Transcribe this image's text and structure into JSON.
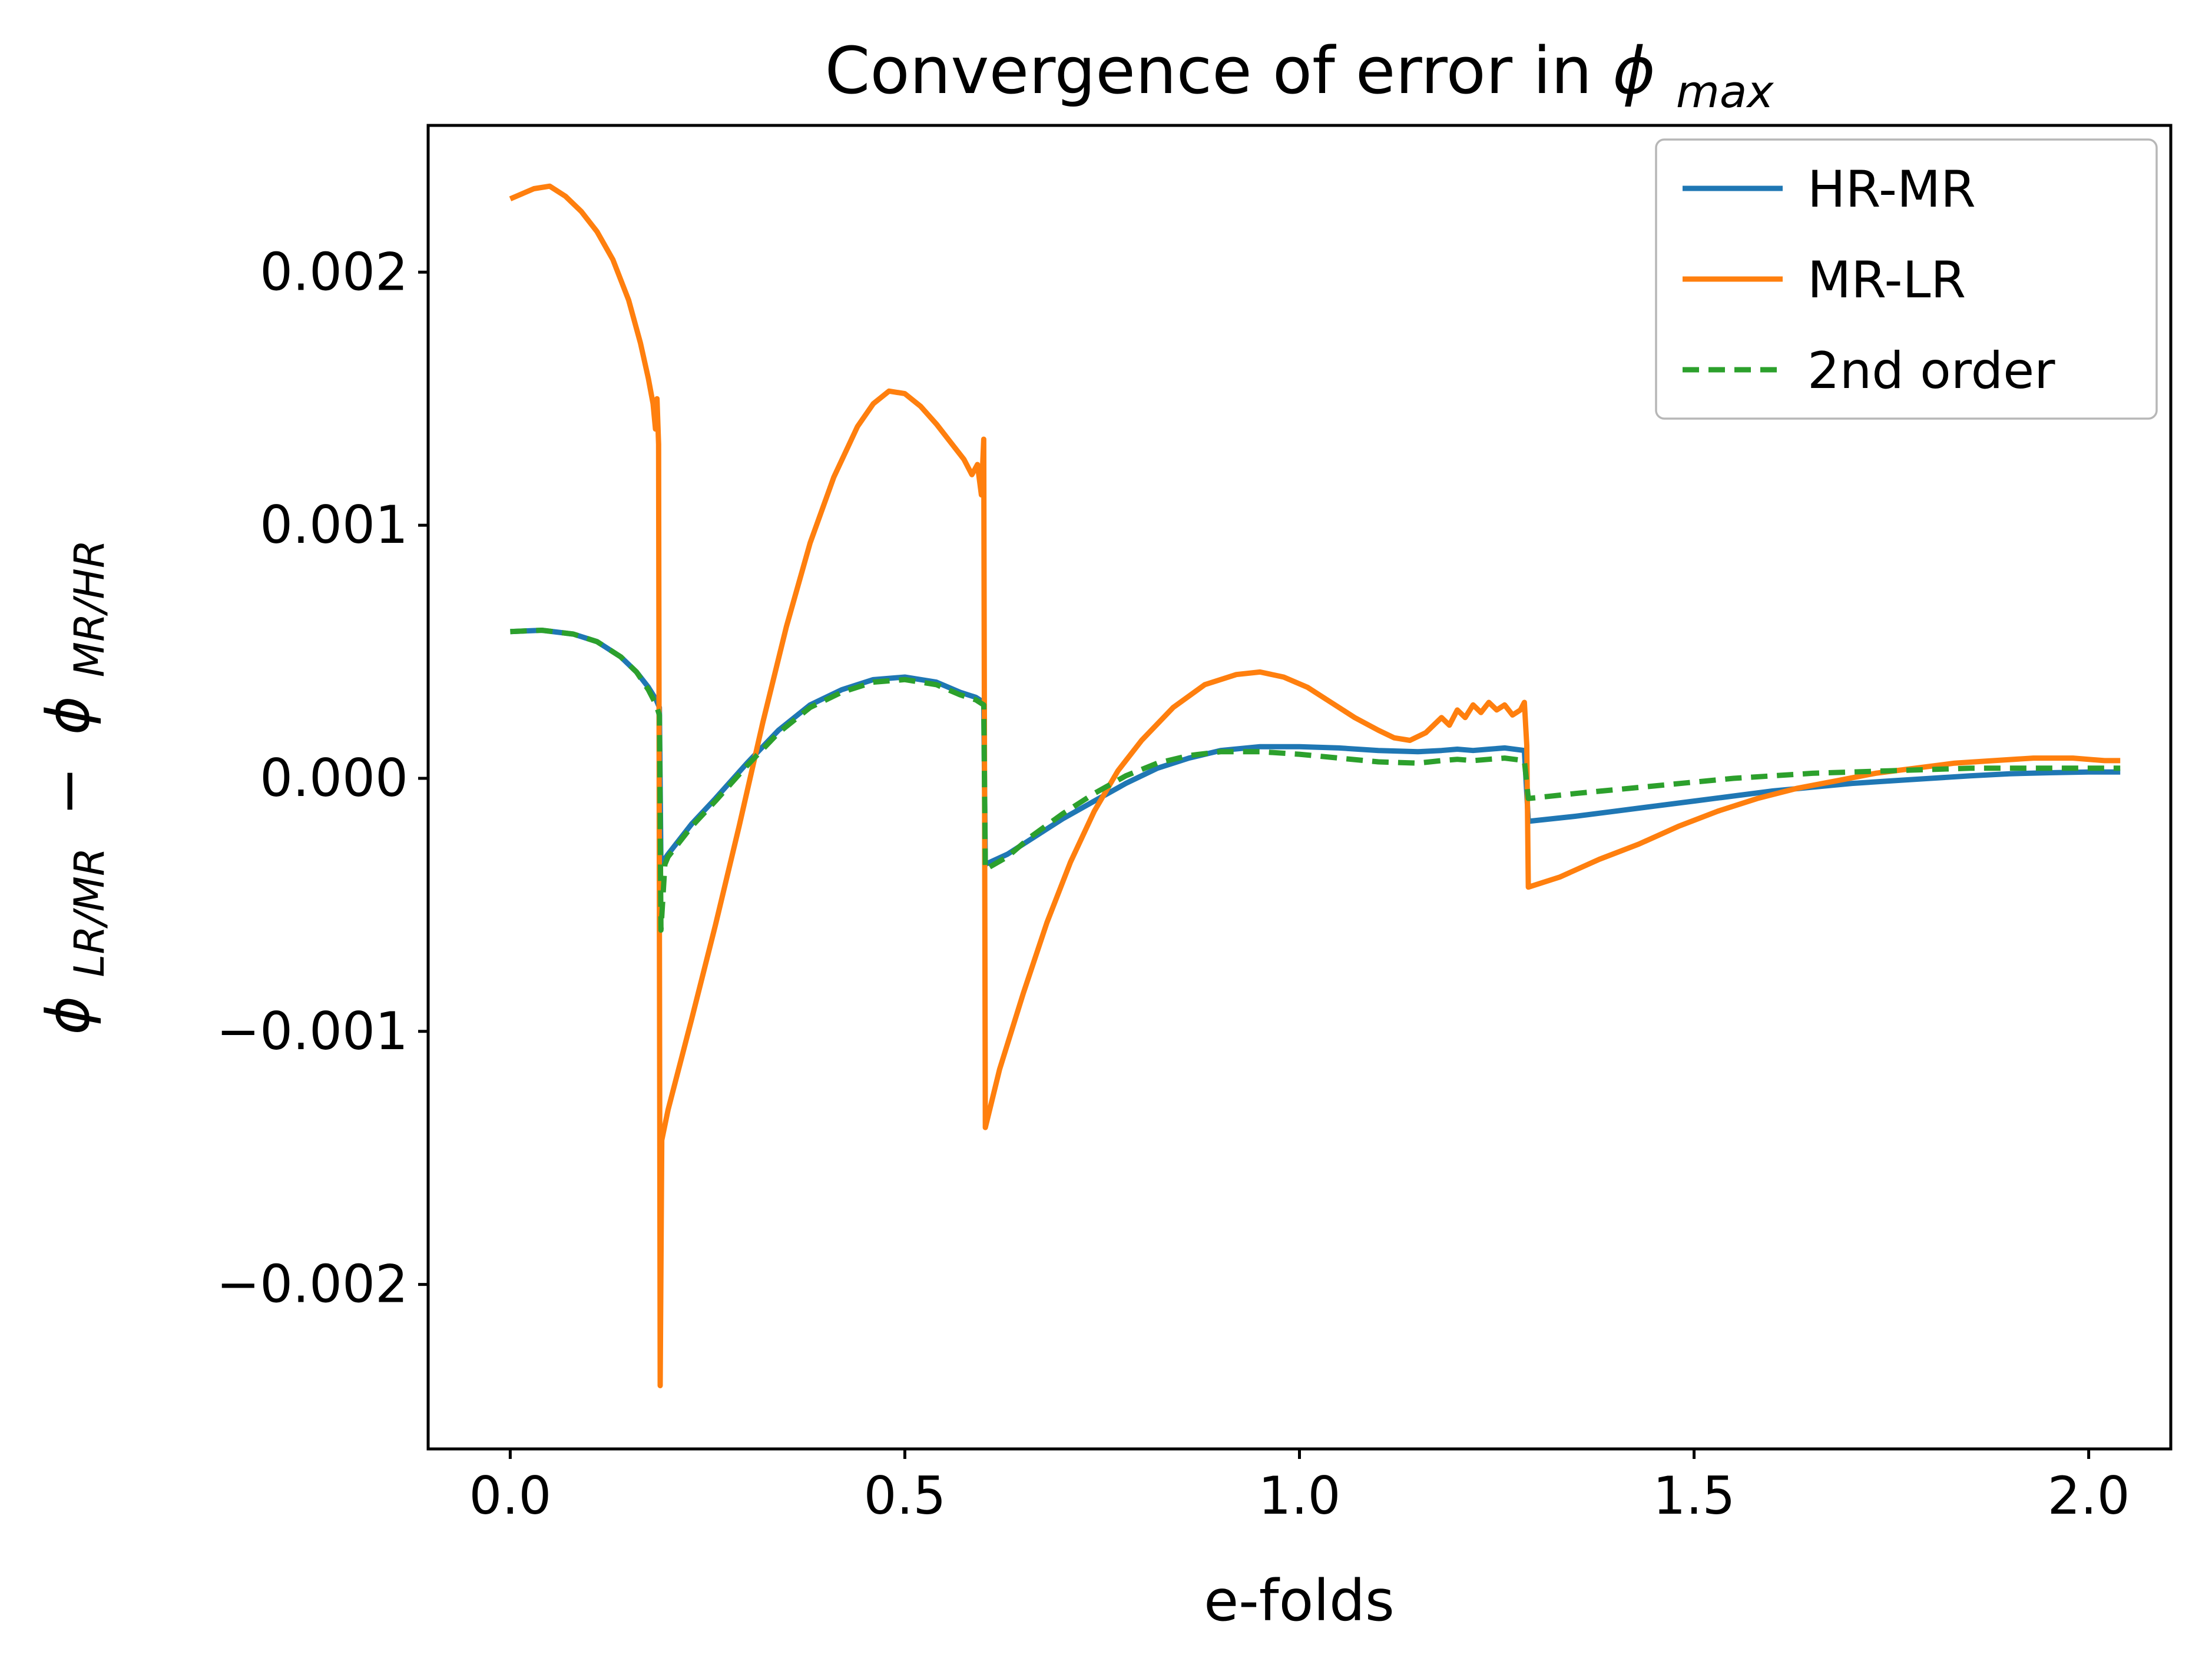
{
  "figure": {
    "background": "#ffffff"
  },
  "chart_data": {
    "type": "line",
    "title": {
      "prefix": "Convergence of error in ",
      "symbol": "ϕ",
      "subscript": "max"
    },
    "xlabel": "e-folds",
    "ylabel": {
      "symbol1": "ϕ",
      "subscript1": "LR/MR",
      "operator": "−",
      "symbol2": "ϕ",
      "subscript2": "MR/HR"
    },
    "xlim": [
      -0.104,
      2.104
    ],
    "ylim": [
      -0.00265,
      0.00258
    ],
    "grid": false,
    "xticks": [
      {
        "v": 0.0,
        "label": "0.0"
      },
      {
        "v": 0.5,
        "label": "0.5"
      },
      {
        "v": 1.0,
        "label": "1.0"
      },
      {
        "v": 1.5,
        "label": "1.5"
      },
      {
        "v": 2.0,
        "label": "2.0"
      }
    ],
    "yticks": [
      {
        "v": -0.002,
        "label": "−0.002"
      },
      {
        "v": -0.001,
        "label": "−0.001"
      },
      {
        "v": 0.0,
        "label": "0.000"
      },
      {
        "v": 0.001,
        "label": "0.001"
      },
      {
        "v": 0.002,
        "label": "0.002"
      }
    ],
    "legend": {
      "position": "upper right",
      "entries": [
        {
          "label": "HR-MR",
          "color": "#1f77b4",
          "dash": false
        },
        {
          "label": "MR-LR",
          "color": "#ff7f0e",
          "dash": false
        },
        {
          "label": "2nd order",
          "color": "#2ca02c",
          "dash": true
        }
      ]
    },
    "series": [
      {
        "name": "HR-MR",
        "color": "#1f77b4",
        "dash": null,
        "points": [
          [
            0.0,
            0.00058
          ],
          [
            0.04,
            0.000585
          ],
          [
            0.08,
            0.00057
          ],
          [
            0.11,
            0.00054
          ],
          [
            0.14,
            0.00048
          ],
          [
            0.16,
            0.00042
          ],
          [
            0.175,
            0.00036
          ],
          [
            0.185,
            0.00031
          ],
          [
            0.189,
            0.00028
          ],
          [
            0.191,
            -0.00034
          ],
          [
            0.2,
            -0.0003
          ],
          [
            0.23,
            -0.00018
          ],
          [
            0.26,
            -8e-05
          ],
          [
            0.3,
            6e-05
          ],
          [
            0.34,
            0.00019
          ],
          [
            0.38,
            0.00029
          ],
          [
            0.42,
            0.00035
          ],
          [
            0.46,
            0.00039
          ],
          [
            0.5,
            0.0004
          ],
          [
            0.54,
            0.00038
          ],
          [
            0.57,
            0.00034
          ],
          [
            0.59,
            0.00032
          ],
          [
            0.6,
            0.0003
          ],
          [
            0.602,
            -0.00034
          ],
          [
            0.63,
            -0.0003
          ],
          [
            0.66,
            -0.00024
          ],
          [
            0.7,
            -0.00016
          ],
          [
            0.74,
            -9e-05
          ],
          [
            0.78,
            -2e-05
          ],
          [
            0.82,
            4e-05
          ],
          [
            0.86,
            8e-05
          ],
          [
            0.9,
            0.00011
          ],
          [
            0.95,
            0.000125
          ],
          [
            1.0,
            0.000125
          ],
          [
            1.05,
            0.00012
          ],
          [
            1.1,
            0.00011
          ],
          [
            1.15,
            0.000105
          ],
          [
            1.18,
            0.00011
          ],
          [
            1.2,
            0.000115
          ],
          [
            1.22,
            0.00011
          ],
          [
            1.24,
            0.000115
          ],
          [
            1.26,
            0.00012
          ],
          [
            1.285,
            0.00011
          ],
          [
            1.29,
            -0.00017
          ],
          [
            1.35,
            -0.00015
          ],
          [
            1.4,
            -0.00013
          ],
          [
            1.45,
            -0.00011
          ],
          [
            1.5,
            -9e-05
          ],
          [
            1.55,
            -7e-05
          ],
          [
            1.6,
            -5e-05
          ],
          [
            1.65,
            -3.5e-05
          ],
          [
            1.7,
            -2e-05
          ],
          [
            1.75,
            -1e-05
          ],
          [
            1.8,
            0.0
          ],
          [
            1.85,
            1e-05
          ],
          [
            1.9,
            1.8e-05
          ],
          [
            1.95,
            2.2e-05
          ],
          [
            2.0,
            2.5e-05
          ],
          [
            2.04,
            2.5e-05
          ]
        ]
      },
      {
        "name": "MR-LR",
        "color": "#ff7f0e",
        "dash": null,
        "points": [
          [
            0.0,
            0.00229
          ],
          [
            0.03,
            0.00233
          ],
          [
            0.05,
            0.00234
          ],
          [
            0.07,
            0.0023
          ],
          [
            0.09,
            0.00224
          ],
          [
            0.11,
            0.00216
          ],
          [
            0.13,
            0.00205
          ],
          [
            0.15,
            0.00189
          ],
          [
            0.165,
            0.00172
          ],
          [
            0.175,
            0.00158
          ],
          [
            0.181,
            0.00148
          ],
          [
            0.184,
            0.00138
          ],
          [
            0.186,
            0.0015
          ],
          [
            0.188,
            0.00132
          ],
          [
            0.19,
            -0.0024
          ],
          [
            0.192,
            -0.00143
          ],
          [
            0.2,
            -0.00131
          ],
          [
            0.23,
            -0.00095
          ],
          [
            0.26,
            -0.00058
          ],
          [
            0.29,
            -0.00019
          ],
          [
            0.32,
            0.00022
          ],
          [
            0.35,
            0.0006
          ],
          [
            0.38,
            0.00093
          ],
          [
            0.41,
            0.00119
          ],
          [
            0.44,
            0.00139
          ],
          [
            0.46,
            0.00148
          ],
          [
            0.48,
            0.00153
          ],
          [
            0.5,
            0.00152
          ],
          [
            0.52,
            0.00147
          ],
          [
            0.54,
            0.0014
          ],
          [
            0.56,
            0.00132
          ],
          [
            0.575,
            0.00126
          ],
          [
            0.585,
            0.0012
          ],
          [
            0.592,
            0.00124
          ],
          [
            0.597,
            0.00112
          ],
          [
            0.6,
            0.00134
          ],
          [
            0.602,
            -0.00138
          ],
          [
            0.62,
            -0.00115
          ],
          [
            0.65,
            -0.00085
          ],
          [
            0.68,
            -0.00057
          ],
          [
            0.71,
            -0.00033
          ],
          [
            0.74,
            -0.00013
          ],
          [
            0.77,
            3e-05
          ],
          [
            0.8,
            0.00015
          ],
          [
            0.84,
            0.00028
          ],
          [
            0.88,
            0.00037
          ],
          [
            0.92,
            0.00041
          ],
          [
            0.95,
            0.00042
          ],
          [
            0.98,
            0.0004
          ],
          [
            1.01,
            0.00036
          ],
          [
            1.04,
            0.0003
          ],
          [
            1.07,
            0.00024
          ],
          [
            1.1,
            0.00019
          ],
          [
            1.12,
            0.00016
          ],
          [
            1.14,
            0.00015
          ],
          [
            1.16,
            0.00018
          ],
          [
            1.18,
            0.00024
          ],
          [
            1.19,
            0.00021
          ],
          [
            1.2,
            0.00027
          ],
          [
            1.21,
            0.00024
          ],
          [
            1.22,
            0.00029
          ],
          [
            1.23,
            0.00026
          ],
          [
            1.24,
            0.0003
          ],
          [
            1.25,
            0.00027
          ],
          [
            1.26,
            0.00029
          ],
          [
            1.27,
            0.00025
          ],
          [
            1.28,
            0.00027
          ],
          [
            1.285,
            0.0003
          ],
          [
            1.288,
            0.00013
          ],
          [
            1.29,
            -0.00043
          ],
          [
            1.33,
            -0.00039
          ],
          [
            1.38,
            -0.00032
          ],
          [
            1.43,
            -0.00026
          ],
          [
            1.48,
            -0.00019
          ],
          [
            1.53,
            -0.00013
          ],
          [
            1.58,
            -8e-05
          ],
          [
            1.63,
            -4e-05
          ],
          [
            1.68,
            -1e-05
          ],
          [
            1.73,
            2e-05
          ],
          [
            1.78,
            4e-05
          ],
          [
            1.83,
            6e-05
          ],
          [
            1.88,
            7e-05
          ],
          [
            1.93,
            8e-05
          ],
          [
            1.98,
            8e-05
          ],
          [
            2.02,
            7e-05
          ],
          [
            2.04,
            7e-05
          ]
        ]
      },
      {
        "name": "2nd order",
        "color": "#2ca02c",
        "dash": [
          28,
          16
        ],
        "points": [
          [
            0.0,
            0.00058
          ],
          [
            0.04,
            0.000585
          ],
          [
            0.08,
            0.00057
          ],
          [
            0.11,
            0.00054
          ],
          [
            0.14,
            0.00048
          ],
          [
            0.16,
            0.00042
          ],
          [
            0.175,
            0.00035
          ],
          [
            0.185,
            0.00029
          ],
          [
            0.189,
            0.00025
          ],
          [
            0.191,
            -0.0006
          ],
          [
            0.196,
            -0.00034
          ],
          [
            0.2,
            -0.00031
          ],
          [
            0.23,
            -0.00019
          ],
          [
            0.26,
            -9e-05
          ],
          [
            0.3,
            5e-05
          ],
          [
            0.34,
            0.00018
          ],
          [
            0.38,
            0.00028
          ],
          [
            0.42,
            0.00034
          ],
          [
            0.46,
            0.00038
          ],
          [
            0.5,
            0.00039
          ],
          [
            0.54,
            0.00037
          ],
          [
            0.57,
            0.00033
          ],
          [
            0.59,
            0.00031
          ],
          [
            0.6,
            0.00029
          ],
          [
            0.602,
            -0.00036
          ],
          [
            0.63,
            -0.00031
          ],
          [
            0.66,
            -0.00023
          ],
          [
            0.7,
            -0.00014
          ],
          [
            0.74,
            -6e-05
          ],
          [
            0.78,
            1e-05
          ],
          [
            0.82,
            6e-05
          ],
          [
            0.86,
            9e-05
          ],
          [
            0.9,
            0.000105
          ],
          [
            0.95,
            0.000105
          ],
          [
            1.0,
            9.5e-05
          ],
          [
            1.05,
            8e-05
          ],
          [
            1.1,
            6.5e-05
          ],
          [
            1.15,
            6e-05
          ],
          [
            1.18,
            7e-05
          ],
          [
            1.2,
            7.5e-05
          ],
          [
            1.22,
            7e-05
          ],
          [
            1.24,
            7.5e-05
          ],
          [
            1.26,
            8e-05
          ],
          [
            1.285,
            7e-05
          ],
          [
            1.29,
            -8e-05
          ],
          [
            1.35,
            -6e-05
          ],
          [
            1.4,
            -4.5e-05
          ],
          [
            1.45,
            -3e-05
          ],
          [
            1.5,
            -1.5e-05
          ],
          [
            1.55,
            0.0
          ],
          [
            1.6,
            1e-05
          ],
          [
            1.65,
            2e-05
          ],
          [
            1.7,
            2.5e-05
          ],
          [
            1.75,
            3e-05
          ],
          [
            1.8,
            3.5e-05
          ],
          [
            1.85,
            4e-05
          ],
          [
            1.9,
            4e-05
          ],
          [
            1.95,
            4e-05
          ],
          [
            2.0,
            4e-05
          ],
          [
            2.04,
            4e-05
          ]
        ]
      }
    ]
  }
}
